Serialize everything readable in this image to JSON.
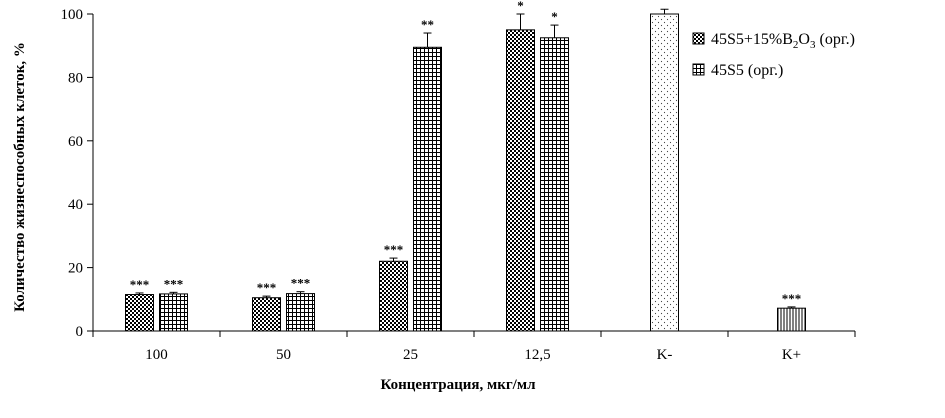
{
  "chart_data": {
    "type": "bar",
    "categories": [
      "100",
      "50",
      "25",
      "12,5",
      "K-",
      "K+"
    ],
    "series": [
      {
        "name": "45S5+15%B2O3 (орг.)",
        "values": [
          11.5,
          10.5,
          22,
          95,
          null,
          null
        ],
        "errors": [
          0.5,
          0.5,
          1,
          5,
          null,
          null
        ],
        "stars": [
          "***",
          "***",
          "***",
          "*",
          "",
          ""
        ]
      },
      {
        "name": "45S5 (орг.)",
        "values": [
          11.7,
          11.8,
          89.5,
          92.5,
          null,
          null
        ],
        "errors": [
          0.5,
          0.6,
          4.5,
          4,
          null,
          null
        ],
        "stars": [
          "***",
          "***",
          "**",
          "*",
          "",
          ""
        ]
      },
      {
        "name": "",
        "values": [
          null,
          null,
          null,
          null,
          100,
          null
        ],
        "errors": [
          null,
          null,
          null,
          null,
          1.5,
          null
        ],
        "stars": [
          "",
          "",
          "",
          "",
          "",
          ""
        ]
      },
      {
        "name": "",
        "values": [
          null,
          null,
          null,
          null,
          null,
          7.2
        ],
        "errors": [
          null,
          null,
          null,
          null,
          null,
          0.4
        ],
        "stars": [
          "",
          "",
          "",
          "",
          "",
          "***"
        ]
      }
    ],
    "title": "",
    "xlabel": "Концентрация, мкг/мл",
    "ylabel": "Количество жизнеспособных клеток, %",
    "ylim": [
      0,
      100
    ],
    "yticks": [
      "0",
      "20",
      "40",
      "60",
      "80",
      "100"
    ],
    "grid": false,
    "legend": {
      "placement": "top-right",
      "items": [
        {
          "series": 0,
          "text": "45S5+15%B",
          "sub1": "2",
          "mid": "O",
          "sub2": "3",
          "tail": " (орг.)"
        },
        {
          "series": 1,
          "text": "45S5 (орг.)"
        }
      ]
    }
  }
}
